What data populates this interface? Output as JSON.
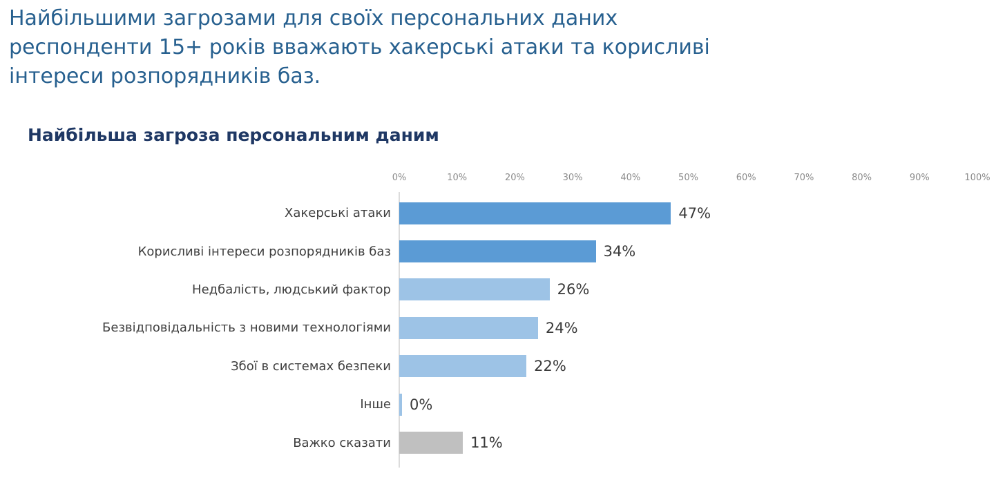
{
  "page": {
    "title_lines": [
      "Найбільшими загрозами для своїх персональних даних",
      "респонденти 15+ років вважають хакерські атаки та корисливі",
      "інтереси розпорядників баз."
    ],
    "chart_heading": "Найбільша загроза персональним даним"
  },
  "colors": {
    "title_text": "#27608f",
    "heading_text": "#1f3864",
    "category_text": "#3f3f3f",
    "value_text": "#3a3a3a",
    "tick_text": "#8b8b8b",
    "axis_line": "#dcdcdc",
    "background": "#ffffff",
    "bar_dark_blue": "#5b9bd5",
    "bar_light_blue": "#9dc3e6",
    "bar_gray": "#c0c0c0"
  },
  "chart_data": {
    "type": "bar",
    "orientation": "horizontal",
    "title": "Найбільша загроза персональним даним",
    "categories": [
      "Хакерські атаки",
      "Корисливі інтереси розпорядників баз",
      "Недбалість, людський фактор",
      "Безвідповідальність з новими технологіями",
      "Збої в системах безпеки",
      "Інше",
      "Важко сказати"
    ],
    "values": [
      47,
      34,
      26,
      24,
      22,
      0,
      11
    ],
    "value_labels": [
      "47%",
      "34%",
      "26%",
      "24%",
      "22%",
      "0%",
      "11%"
    ],
    "bar_colors": [
      "#5b9bd5",
      "#5b9bd5",
      "#9dc3e6",
      "#9dc3e6",
      "#9dc3e6",
      "#9dc3e6",
      "#c0c0c0"
    ],
    "x_ticks": [
      "0%",
      "10%",
      "20%",
      "30%",
      "40%",
      "50%",
      "60%",
      "70%",
      "80%",
      "90%",
      "100%"
    ],
    "xlim": [
      0,
      100
    ],
    "xlabel": "",
    "ylabel": "",
    "grid": false,
    "legend": false,
    "axis_position": "top"
  }
}
